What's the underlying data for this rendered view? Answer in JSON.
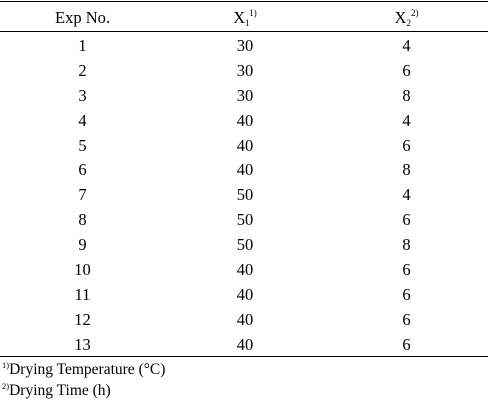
{
  "table": {
    "headers": {
      "exp": "Exp No.",
      "x1": {
        "base": "X",
        "sub": "1",
        "sup": "1)"
      },
      "x2": {
        "base": "X",
        "sub": "2",
        "sup": "2)"
      }
    },
    "rows": [
      {
        "exp": "1",
        "x1": "30",
        "x2": "4"
      },
      {
        "exp": "2",
        "x1": "30",
        "x2": "6"
      },
      {
        "exp": "3",
        "x1": "30",
        "x2": "8"
      },
      {
        "exp": "4",
        "x1": "40",
        "x2": "4"
      },
      {
        "exp": "5",
        "x1": "40",
        "x2": "6"
      },
      {
        "exp": "6",
        "x1": "40",
        "x2": "8"
      },
      {
        "exp": "7",
        "x1": "50",
        "x2": "4"
      },
      {
        "exp": "8",
        "x1": "50",
        "x2": "6"
      },
      {
        "exp": "9",
        "x1": "50",
        "x2": "8"
      },
      {
        "exp": "10",
        "x1": "40",
        "x2": "6"
      },
      {
        "exp": "11",
        "x1": "40",
        "x2": "6"
      },
      {
        "exp": "12",
        "x1": "40",
        "x2": "6"
      },
      {
        "exp": "13",
        "x1": "40",
        "x2": "6"
      }
    ]
  },
  "footnotes": [
    {
      "mark": "1)",
      "text": "Drying Temperature (°C)"
    },
    {
      "mark": "2)",
      "text": "Drying Time (h)"
    }
  ]
}
